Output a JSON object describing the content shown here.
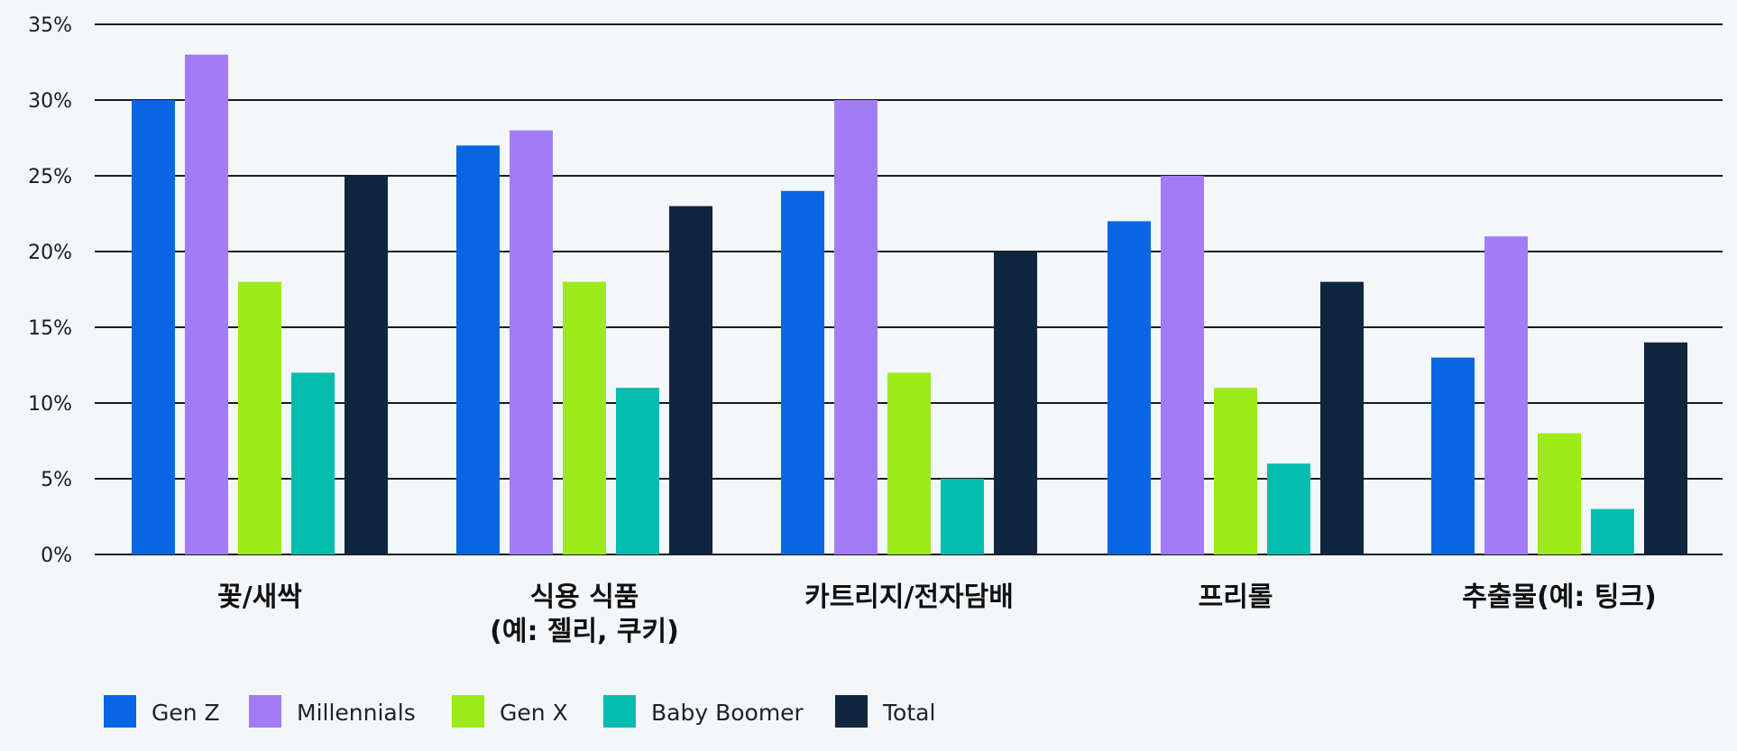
{
  "colors": {
    "background": "#f4f7fa",
    "gridline": "#1a1a1a",
    "series": [
      "#0866e3",
      "#a27cf6",
      "#9dea1a",
      "#03bdae",
      "#10253e"
    ]
  },
  "chart_data": {
    "type": "bar",
    "categories": [
      [
        "꽃/새싹"
      ],
      [
        "식용 식품",
        "(예: 젤리, 쿠키)"
      ],
      [
        "카트리지/전자담배"
      ],
      [
        "프리롤"
      ],
      [
        "추출물(예: 팅크)"
      ]
    ],
    "series": [
      {
        "name": "Gen Z",
        "values": [
          30,
          27,
          24,
          22,
          13
        ]
      },
      {
        "name": "Millennials",
        "values": [
          33,
          28,
          30,
          25,
          21
        ]
      },
      {
        "name": "Gen X",
        "values": [
          18,
          18,
          12,
          11,
          8
        ]
      },
      {
        "name": "Baby Boomer",
        "values": [
          12,
          11,
          5,
          6,
          3
        ]
      },
      {
        "name": "Total",
        "values": [
          25,
          23,
          20,
          18,
          14
        ]
      }
    ],
    "y_ticks": [
      "0%",
      "5%",
      "10%",
      "15%",
      "20%",
      "25%",
      "30%",
      "35%"
    ],
    "ylim": [
      0,
      35
    ],
    "grid": true,
    "legend_position": "bottom-left"
  }
}
